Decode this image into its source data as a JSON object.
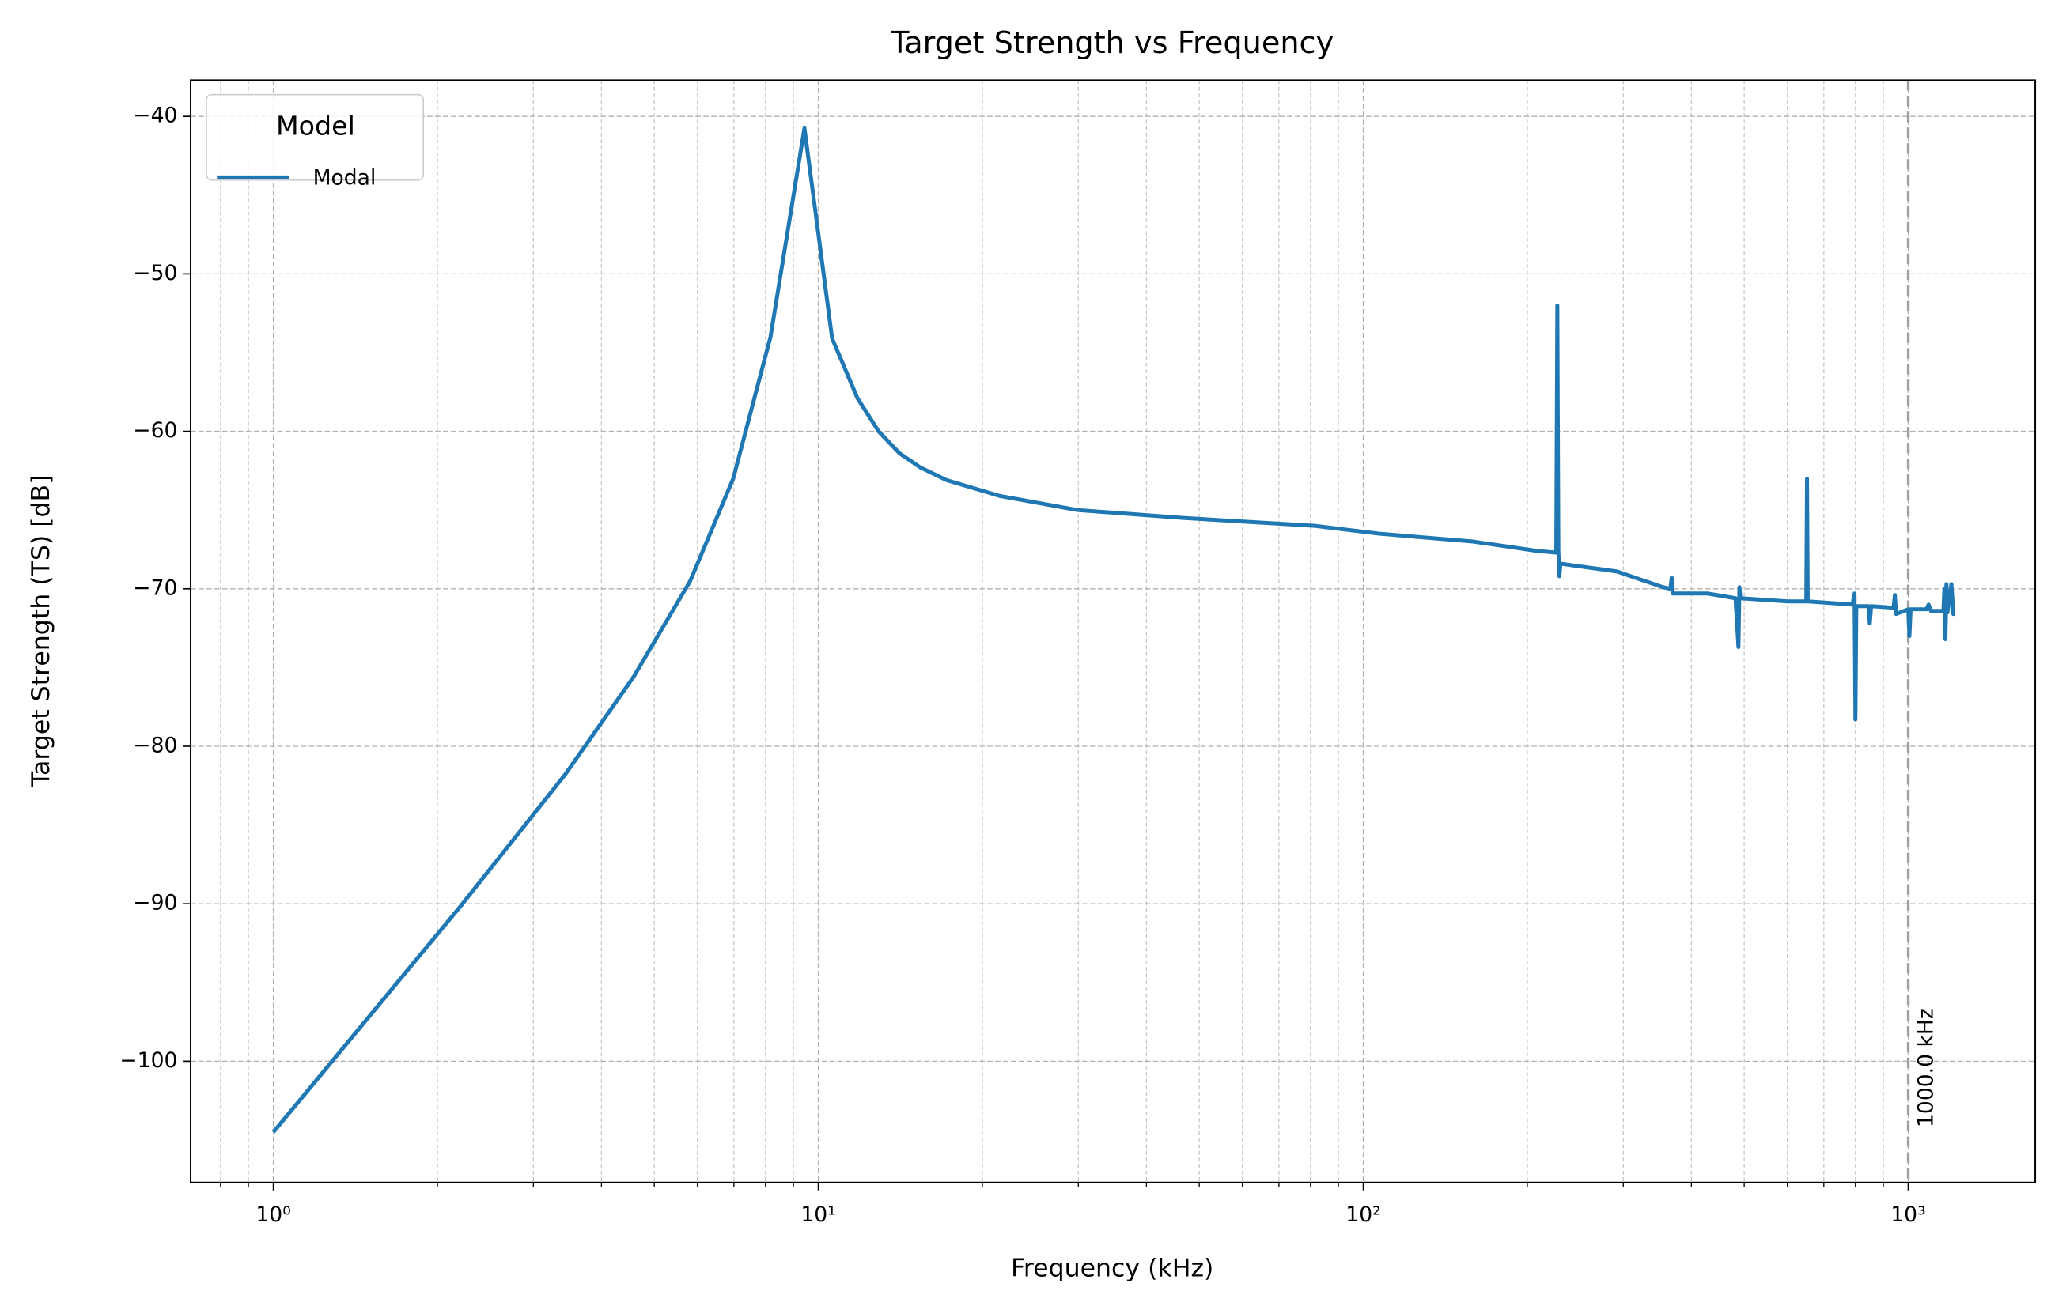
{
  "chart_data": {
    "type": "line",
    "title": "Target Strength vs Frequency",
    "x_label": "Frequency (kHz)",
    "y_label": "Target Strength (TS) [dB]",
    "x_scale": "log",
    "grid": true,
    "xlim": [
      0.705,
      1710
    ],
    "ylim": [
      -107.7,
      -37.7
    ],
    "xticks": [
      {
        "value": 1,
        "label": "10⁰"
      },
      {
        "value": 10,
        "label": "10¹"
      },
      {
        "value": 100,
        "label": "10²"
      },
      {
        "value": 1000,
        "label": "10³"
      }
    ],
    "xminorticks": [
      0.8,
      0.9,
      2,
      3,
      4,
      5,
      6,
      7,
      8,
      9,
      20,
      30,
      40,
      50,
      60,
      70,
      80,
      90,
      200,
      300,
      400,
      500,
      600,
      700,
      800,
      900
    ],
    "yticks": [
      {
        "value": -40,
        "label": "−40"
      },
      {
        "value": -50,
        "label": "−50"
      },
      {
        "value": -60,
        "label": "−60"
      },
      {
        "value": -70,
        "label": "−70"
      },
      {
        "value": -80,
        "label": "−80"
      },
      {
        "value": -90,
        "label": "−90"
      },
      {
        "value": -100,
        "label": "−100"
      }
    ],
    "legend": {
      "title": "Model",
      "position": "upper left"
    },
    "vline": {
      "x": 1000,
      "label": "1000.0 kHz",
      "color": "#a0a0a0"
    },
    "x": [
      1,
      2.2,
      3.43,
      4.58,
      5.82,
      6.98,
      8.17,
      9.43,
      10.6,
      11.8,
      12.9,
      14.1,
      15.4,
      17.2,
      21.5,
      29.9,
      46.7,
      81.4,
      107,
      159,
      209,
      226,
      227,
      228,
      229,
      230,
      241,
      292,
      355,
      366,
      368,
      370,
      428,
      482,
      488,
      490,
      492,
      601,
      650,
      652,
      654,
      790,
      797,
      800,
      803,
      845,
      850,
      855,
      940,
      945,
      950,
      1000,
      1005,
      1010,
      1080,
      1090,
      1100,
      1160,
      1165,
      1170,
      1175,
      1180,
      1200,
      1210,
      1220
    ],
    "series": [
      {
        "name": "Modal",
        "color": "#1f77b4",
        "values": [
          -104.5,
          -90.2,
          -81.8,
          -75.6,
          -69.5,
          -63.0,
          -54.0,
          -40.75,
          -54.1,
          -57.9,
          -60.0,
          -61.4,
          -62.3,
          -63.1,
          -64.1,
          -65.0,
          -65.5,
          -66.0,
          -66.5,
          -67.0,
          -67.6,
          -67.7,
          -52.0,
          -67.6,
          -69.2,
          -68.4,
          -68.5,
          -68.9,
          -69.9,
          -70.0,
          -69.3,
          -70.3,
          -70.3,
          -70.6,
          -73.7,
          -69.9,
          -70.6,
          -70.8,
          -70.8,
          -63.0,
          -70.8,
          -71.0,
          -70.3,
          -78.3,
          -71.1,
          -71.1,
          -72.2,
          -71.1,
          -71.2,
          -70.4,
          -71.6,
          -71.3,
          -73.0,
          -71.3,
          -71.3,
          -71.0,
          -71.4,
          -71.4,
          -70.0,
          -73.2,
          -69.7,
          -71.5,
          -69.7,
          -71.6,
          -71.6
        ]
      }
    ]
  }
}
